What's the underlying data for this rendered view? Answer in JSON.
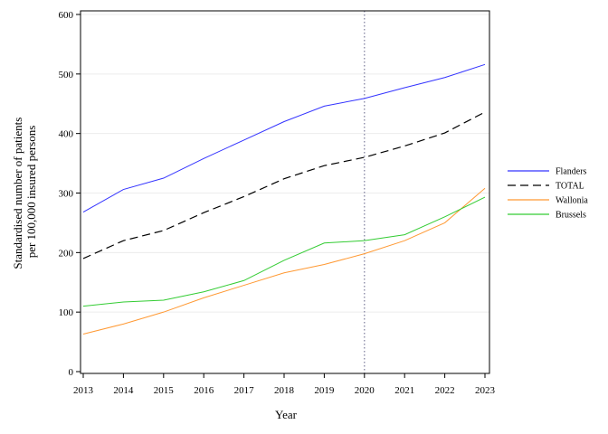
{
  "chart_data": {
    "type": "line",
    "xlabel": "Year",
    "ylabel": "Standardised number of patients",
    "ylabel_line2": "per 100,000 insured persons",
    "x": [
      2013,
      2014,
      2015,
      2016,
      2017,
      2018,
      2019,
      2020,
      2021,
      2022,
      2023
    ],
    "xlim": [
      2013,
      2023
    ],
    "ylim": [
      0,
      600
    ],
    "yticks": [
      0,
      100,
      200,
      300,
      400,
      500,
      600
    ],
    "reference_line_x": 2020,
    "grid": "horizontal",
    "legend_position": "right",
    "series": [
      {
        "name": "Flanders",
        "color": "#3333ff",
        "dash": "solid",
        "values": [
          268,
          306,
          325,
          358,
          389,
          420,
          446,
          459,
          477,
          494,
          516
        ]
      },
      {
        "name": "TOTAL",
        "color": "#000000",
        "dash": "dashed",
        "values": [
          190,
          220,
          237,
          267,
          294,
          324,
          346,
          360,
          379,
          401,
          436
        ]
      },
      {
        "name": "Wallonia",
        "color": "#ff9933",
        "dash": "solid",
        "values": [
          63,
          80,
          100,
          124,
          145,
          166,
          180,
          198,
          220,
          250,
          308
        ]
      },
      {
        "name": "Brussels",
        "color": "#33cc33",
        "dash": "solid",
        "values": [
          110,
          117,
          120,
          134,
          153,
          187,
          216,
          220,
          230,
          260,
          293
        ]
      }
    ]
  }
}
